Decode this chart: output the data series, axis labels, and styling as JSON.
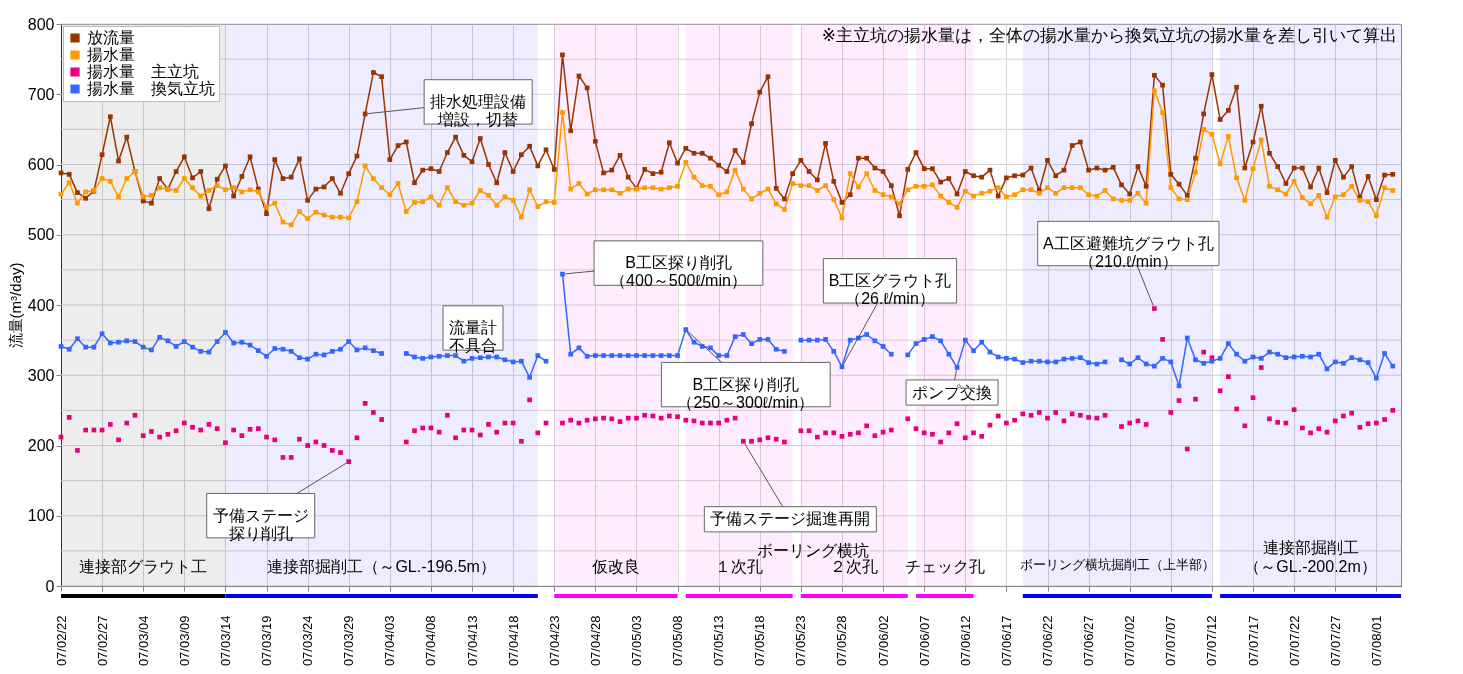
{
  "chart_data": {
    "type": "line",
    "ylabel": "流量(m³/day)",
    "legend": "top left",
    "marker": "square",
    "grid": true,
    "xlim": [
      "--02-22",
      "--08-04"
    ],
    "ylim": [
      0,
      800
    ],
    "yticks": [
      0,
      {
        "value": 50,
        "label": null
      },
      100,
      {
        "value": 150,
        "label": null
      },
      200,
      {
        "value": 250,
        "label": null
      },
      300,
      {
        "value": 350,
        "label": null
      },
      400,
      {
        "value": 450,
        "label": null
      },
      500,
      {
        "value": 550,
        "label": null
      },
      600,
      {
        "value": 650,
        "label": null
      },
      700,
      {
        "value": 750,
        "label": null
      },
      800
    ],
    "xticks": [
      {
        "value": "--02-22",
        "label": "07/02/22"
      },
      {
        "value": "--02-27",
        "label": "07/02/27"
      },
      {
        "value": "--03-04",
        "label": "07/03/04"
      },
      {
        "value": "--03-09",
        "label": "07/03/09"
      },
      {
        "value": "--03-14",
        "label": "07/03/14"
      },
      {
        "value": "--03-19",
        "label": "07/03/19"
      },
      {
        "value": "--03-24",
        "label": "07/03/24"
      },
      {
        "value": "--03-29",
        "label": "07/03/29"
      },
      {
        "value": "--04-03",
        "label": "07/04/03"
      },
      {
        "value": "--04-08",
        "label": "07/04/08"
      },
      {
        "value": "--04-13",
        "label": "07/04/13"
      },
      {
        "value": "--04-18",
        "label": "07/04/18"
      },
      {
        "value": "--04-23",
        "label": "07/04/23"
      },
      {
        "value": "--04-28",
        "label": "07/04/28"
      },
      {
        "value": "--05-03",
        "label": "07/05/03"
      },
      {
        "value": "--05-08",
        "label": "07/05/08"
      },
      {
        "value": "--05-13",
        "label": "07/05/13"
      },
      {
        "value": "--05-18",
        "label": "07/05/18"
      },
      {
        "value": "--05-23",
        "label": "07/05/23"
      },
      {
        "value": "--05-28",
        "label": "07/05/28"
      },
      {
        "value": "--06-02",
        "label": "07/06/02"
      },
      {
        "value": "--06-07",
        "label": "07/06/07"
      },
      {
        "value": "--06-12",
        "label": "07/06/12"
      },
      {
        "value": "--06-17",
        "label": "07/06/17"
      },
      {
        "value": "--06-22",
        "label": "07/06/22"
      },
      {
        "value": "--06-27",
        "label": "07/06/27"
      },
      {
        "value": "--07-02",
        "label": "07/07/02"
      },
      {
        "value": "--07-07",
        "label": "07/07/07"
      },
      {
        "value": "--07-12",
        "label": "07/07/12"
      },
      {
        "value": "--07-17",
        "label": "07/07/17"
      },
      {
        "value": "--07-22",
        "label": "07/07/22"
      },
      {
        "value": "--07-27",
        "label": "07/07/27"
      },
      {
        "value": "--08-01",
        "label": "07/08/01"
      }
    ],
    "x": [
      "--02-22",
      "--02-23",
      "--02-24",
      "--02-25",
      "--02-26",
      "--02-27",
      "--02-28",
      "--03-01",
      "--03-02",
      "--03-03",
      "--03-04",
      "--03-05",
      "--03-06",
      "--03-07",
      "--03-08",
      "--03-09",
      "--03-10",
      "--03-11",
      "--03-12",
      "--03-13",
      "--03-14",
      "--03-15",
      "--03-16",
      "--03-17",
      "--03-18",
      "--03-19",
      "--03-20",
      "--03-21",
      "--03-22",
      "--03-23",
      "--03-24",
      "--03-25",
      "--03-26",
      "--03-27",
      "--03-28",
      "--03-29",
      "--03-30",
      "--03-31",
      "--04-01",
      "--04-02",
      "--04-03",
      "--04-04",
      "--04-05",
      "--04-06",
      "--04-07",
      "--04-08",
      "--04-09",
      "--04-10",
      "--04-11",
      "--04-12",
      "--04-13",
      "--04-14",
      "--04-15",
      "--04-16",
      "--04-17",
      "--04-18",
      "--04-19",
      "--04-20",
      "--04-21",
      "--04-22",
      "--04-23",
      "--04-24",
      "--04-25",
      "--04-26",
      "--04-27",
      "--04-28",
      "--04-29",
      "--04-30",
      "--05-01",
      "--05-02",
      "--05-03",
      "--05-04",
      "--05-05",
      "--05-06",
      "--05-07",
      "--05-08",
      "--05-09",
      "--05-10",
      "--05-11",
      "--05-12",
      "--05-13",
      "--05-14",
      "--05-15",
      "--05-16",
      "--05-17",
      "--05-18",
      "--05-19",
      "--05-20",
      "--05-21",
      "--05-22",
      "--05-23",
      "--05-24",
      "--05-25",
      "--05-26",
      "--05-27",
      "--05-28",
      "--05-29",
      "--05-30",
      "--05-31",
      "--06-01",
      "--06-02",
      "--06-03",
      "--06-04",
      "--06-05",
      "--06-06",
      "--06-07",
      "--06-08",
      "--06-09",
      "--06-10",
      "--06-11",
      "--06-12",
      "--06-13",
      "--06-14",
      "--06-15",
      "--06-16",
      "--06-17",
      "--06-18",
      "--06-19",
      "--06-20",
      "--06-21",
      "--06-22",
      "--06-23",
      "--06-24",
      "--06-25",
      "--06-26",
      "--06-27",
      "--06-28",
      "--06-29",
      "--06-30",
      "--07-01",
      "--07-02",
      "--07-03",
      "--07-04",
      "--07-05",
      "--07-06",
      "--07-07",
      "--07-08",
      "--07-09",
      "--07-10",
      "--07-11",
      "--07-12",
      "--07-13",
      "--07-14",
      "--07-15",
      "--07-16",
      "--07-17",
      "--07-18",
      "--07-19",
      "--07-20",
      "--07-21",
      "--07-22",
      "--07-23",
      "--07-24",
      "--07-25",
      "--07-26",
      "--07-27",
      "--07-28",
      "--07-29",
      "--07-30",
      "--07-31",
      "--08-01",
      "--08-02",
      "--08-03"
    ],
    "series": [
      {
        "name": "放流量",
        "color": "#993300",
        "values": [
          588,
          586,
          560,
          552,
          562,
          614,
          668,
          605,
          639,
          590,
          548,
          545,
          580,
          565,
          590,
          611,
          581,
          590,
          537,
          579,
          598,
          555,
          583,
          611,
          565,
          530,
          607,
          580,
          582,
          608,
          549,
          565,
          568,
          580,
          559,
          587,
          612,
          672,
          731,
          725,
          607,
          627,
          632,
          574,
          592,
          594,
          590,
          617,
          639,
          613,
          604,
          637,
          600,
          574,
          617,
          590,
          614,
          626,
          598,
          621,
          593,
          756,
          648,
          726,
          709,
          633,
          588,
          592,
          613,
          582,
          566,
          593,
          587,
          589,
          631,
          602,
          623,
          616,
          616,
          609,
          599,
          590,
          620,
          603,
          658,
          703,
          725,
          566,
          551,
          587,
          606,
          590,
          578,
          630,
          576,
          546,
          557,
          609,
          609,
          595,
          590,
          570,
          527,
          593,
          617,
          594,
          594,
          575,
          580,
          558,
          590,
          584,
          582,
          592,
          555,
          581,
          584,
          585,
          595,
          563,
          606,
          584,
          592,
          627,
          632,
          592,
          595,
          592,
          596,
          571,
          558,
          597,
          569,
          727,
          713,
          586,
          572,
          556,
          609,
          672,
          728,
          664,
          677,
          710,
          595,
          632,
          683,
          616,
          597,
          573,
          595,
          595,
          568,
          595,
          560,
          606,
          582,
          597,
          553,
          583,
          550,
          585,
          586
        ]
      },
      {
        "name": "揚水量",
        "color": "#ff9900",
        "values": [
          558,
          574,
          545,
          561,
          563,
          580,
          576,
          554,
          580,
          590,
          554,
          556,
          567,
          565,
          563,
          580,
          567,
          555,
          563,
          570,
          564,
          567,
          561,
          564,
          561,
          539,
          545,
          518,
          514,
          533,
          523,
          532,
          528,
          525,
          525,
          524,
          547,
          598,
          580,
          567,
          557,
          573,
          533,
          546,
          547,
          554,
          542,
          567,
          547,
          542,
          545,
          563,
          556,
          542,
          554,
          549,
          525,
          564,
          540,
          547,
          546,
          674,
          565,
          573,
          558,
          564,
          564,
          564,
          559,
          565,
          565,
          567,
          567,
          565,
          567,
          569,
          603,
          582,
          570,
          569,
          557,
          561,
          592,
          565,
          551,
          559,
          565,
          544,
          536,
          573,
          570,
          570,
          563,
          570,
          550,
          524,
          587,
          568,
          587,
          563,
          557,
          554,
          544,
          564,
          569,
          569,
          571,
          555,
          546,
          539,
          562,
          555,
          559,
          562,
          567,
          554,
          557,
          564,
          564,
          559,
          567,
          559,
          567,
          567,
          567,
          557,
          555,
          563,
          551,
          549,
          549,
          559,
          545,
          705,
          674,
          567,
          551,
          550,
          589,
          650,
          643,
          601,
          640,
          581,
          549,
          594,
          635,
          569,
          564,
          558,
          576,
          553,
          544,
          556,
          525,
          554,
          557,
          569,
          549,
          547,
          527,
          567,
          563
        ]
      },
      {
        "name": "揚水量　主立坑",
        "color": "#e6007e",
        "type": "scatter",
        "values": [
          212,
          240,
          193,
          222,
          222,
          222,
          230,
          208,
          232,
          243,
          214,
          220,
          212,
          216,
          221,
          232,
          226,
          222,
          230,
          224,
          204,
          222,
          214,
          223,
          224,
          212,
          208,
          183,
          183,
          209,
          200,
          205,
          200,
          193,
          190,
          177,
          211,
          260,
          247,
          237,
          null,
          null,
          205,
          221,
          225,
          225,
          219,
          243,
          211,
          222,
          222,
          215,
          230,
          219,
          232,
          232,
          206,
          265,
          218,
          232,
          null,
          232,
          236,
          232,
          236,
          238,
          239,
          238,
          234,
          239,
          239,
          243,
          242,
          239,
          242,
          241,
          236,
          235,
          232,
          232,
          232,
          236,
          239,
          206,
          206,
          208,
          211,
          209,
          205,
          null,
          221,
          221,
          212,
          218,
          218,
          213,
          216,
          218,
          228,
          214,
          219,
          222,
          null,
          238,
          224,
          218,
          216,
          205,
          218,
          231,
          211,
          218,
          213,
          229,
          242,
          232,
          236,
          245,
          243,
          247,
          239,
          247,
          235,
          245,
          243,
          240,
          239,
          243,
          null,
          227,
          232,
          235,
          230,
          395,
          351,
          247,
          264,
          195,
          266,
          333,
          325,
          278,
          298,
          252,
          228,
          268,
          311,
          238,
          233,
          232,
          251,
          225,
          218,
          224,
          219,
          235,
          242,
          246,
          226,
          231,
          232,
          237,
          250
        ]
      },
      {
        "name": "揚水量　換気立坑",
        "color": "#3366ff",
        "values": [
          341,
          337,
          352,
          340,
          340,
          359,
          346,
          347,
          349,
          348,
          340,
          336,
          354,
          349,
          341,
          348,
          340,
          334,
          333,
          348,
          361,
          346,
          347,
          343,
          335,
          327,
          338,
          337,
          334,
          325,
          323,
          330,
          329,
          334,
          337,
          348,
          336,
          339,
          335,
          331,
          null,
          null,
          331,
          326,
          324,
          326,
          327,
          328,
          328,
          320,
          324,
          325,
          326,
          326,
          322,
          319,
          320,
          297,
          328,
          320,
          null,
          444,
          330,
          339,
          327,
          328,
          328,
          328,
          328,
          328,
          328,
          328,
          328,
          328,
          328,
          328,
          365,
          347,
          341,
          339,
          328,
          328,
          355,
          358,
          345,
          351,
          351,
          337,
          334,
          null,
          350,
          350,
          350,
          351,
          334,
          312,
          350,
          353,
          358,
          349,
          341,
          330,
          null,
          329,
          345,
          351,
          355,
          349,
          330,
          311,
          350,
          335,
          347,
          333,
          326,
          324,
          323,
          318,
          320,
          320,
          319,
          319,
          323,
          324,
          325,
          318,
          316,
          319,
          null,
          322,
          316,
          325,
          316,
          313,
          324,
          319,
          285,
          353,
          322,
          317,
          320,
          324,
          345,
          330,
          320,
          326,
          324,
          333,
          330,
          325,
          326,
          327,
          326,
          330,
          309,
          319,
          317,
          325,
          322,
          318,
          296,
          331,
          313
        ]
      }
    ],
    "bands": [
      {
        "axis": "x",
        "from": "--02-22",
        "to": "--03-14",
        "label": "連接部グラウト工",
        "color": "#000000"
      },
      {
        "axis": "x",
        "from": "--03-14",
        "to": "--04-21",
        "label": "連接部掘削工（～GL.-196.5m）",
        "color": "#0000ff"
      },
      {
        "axis": "x",
        "from": "--04-23",
        "to": "--05-08",
        "label": "仮改良",
        "color": "#ff00ff"
      },
      {
        "axis": "x",
        "from": "--05-09",
        "to": "--05-22",
        "label": "１次孔",
        "color": "#ff00ff"
      },
      {
        "axis": "x",
        "from": "--05-23",
        "to": "--06-05",
        "label": "２次孔",
        "color": "#ff00ff"
      },
      {
        "axis": "x",
        "from": "--06-06",
        "to": "--06-13",
        "label": "チェック孔",
        "color": "#ff00ff"
      },
      {
        "axis": "x",
        "from": "--06-19",
        "to": "--07-12",
        "label": "ボーリング横坑掘削工（上半部）",
        "color": "#0000ff"
      },
      {
        "axis": "x",
        "from": "--07-13",
        "to": "--08-04",
        "label": "連接部掘削工（～GL.-200.2m）",
        "color": "#0000ff"
      }
    ],
    "annotations": [
      "※主立坑の揚水量は，全体の揚水量から換気立坑の揚水量を差し引いて算出",
      {
        "text": "排水処理設備増設，切替",
        "x": "--03-31",
        "y": 672
      },
      "流量計不具合",
      {
        "text": "B工区探り削孔（400～500ℓ/min）",
        "x": "--04-24",
        "y": 444
      },
      {
        "text": "B工区グラウト孔（26.ℓ/min）",
        "x": "--05-28",
        "y": 312
      },
      {
        "text": "A工区避難坑グラウト孔（210.ℓ/min）",
        "x": "--07-05",
        "y": 395
      },
      {
        "text": "B工区探り削孔（250～300ℓ/min）",
        "x": "--05-09",
        "y": 365
      },
      {
        "text": "ポンプ交換",
        "x": "--06-11",
        "y": 311
      },
      {
        "text": "予備ステージ掘進再開",
        "x": "--05-16",
        "y": 206
      },
      {
        "text": "予備ステージ探り削孔",
        "x": "--03-29",
        "y": 177
      },
      "ボーリング横坑"
    ]
  }
}
